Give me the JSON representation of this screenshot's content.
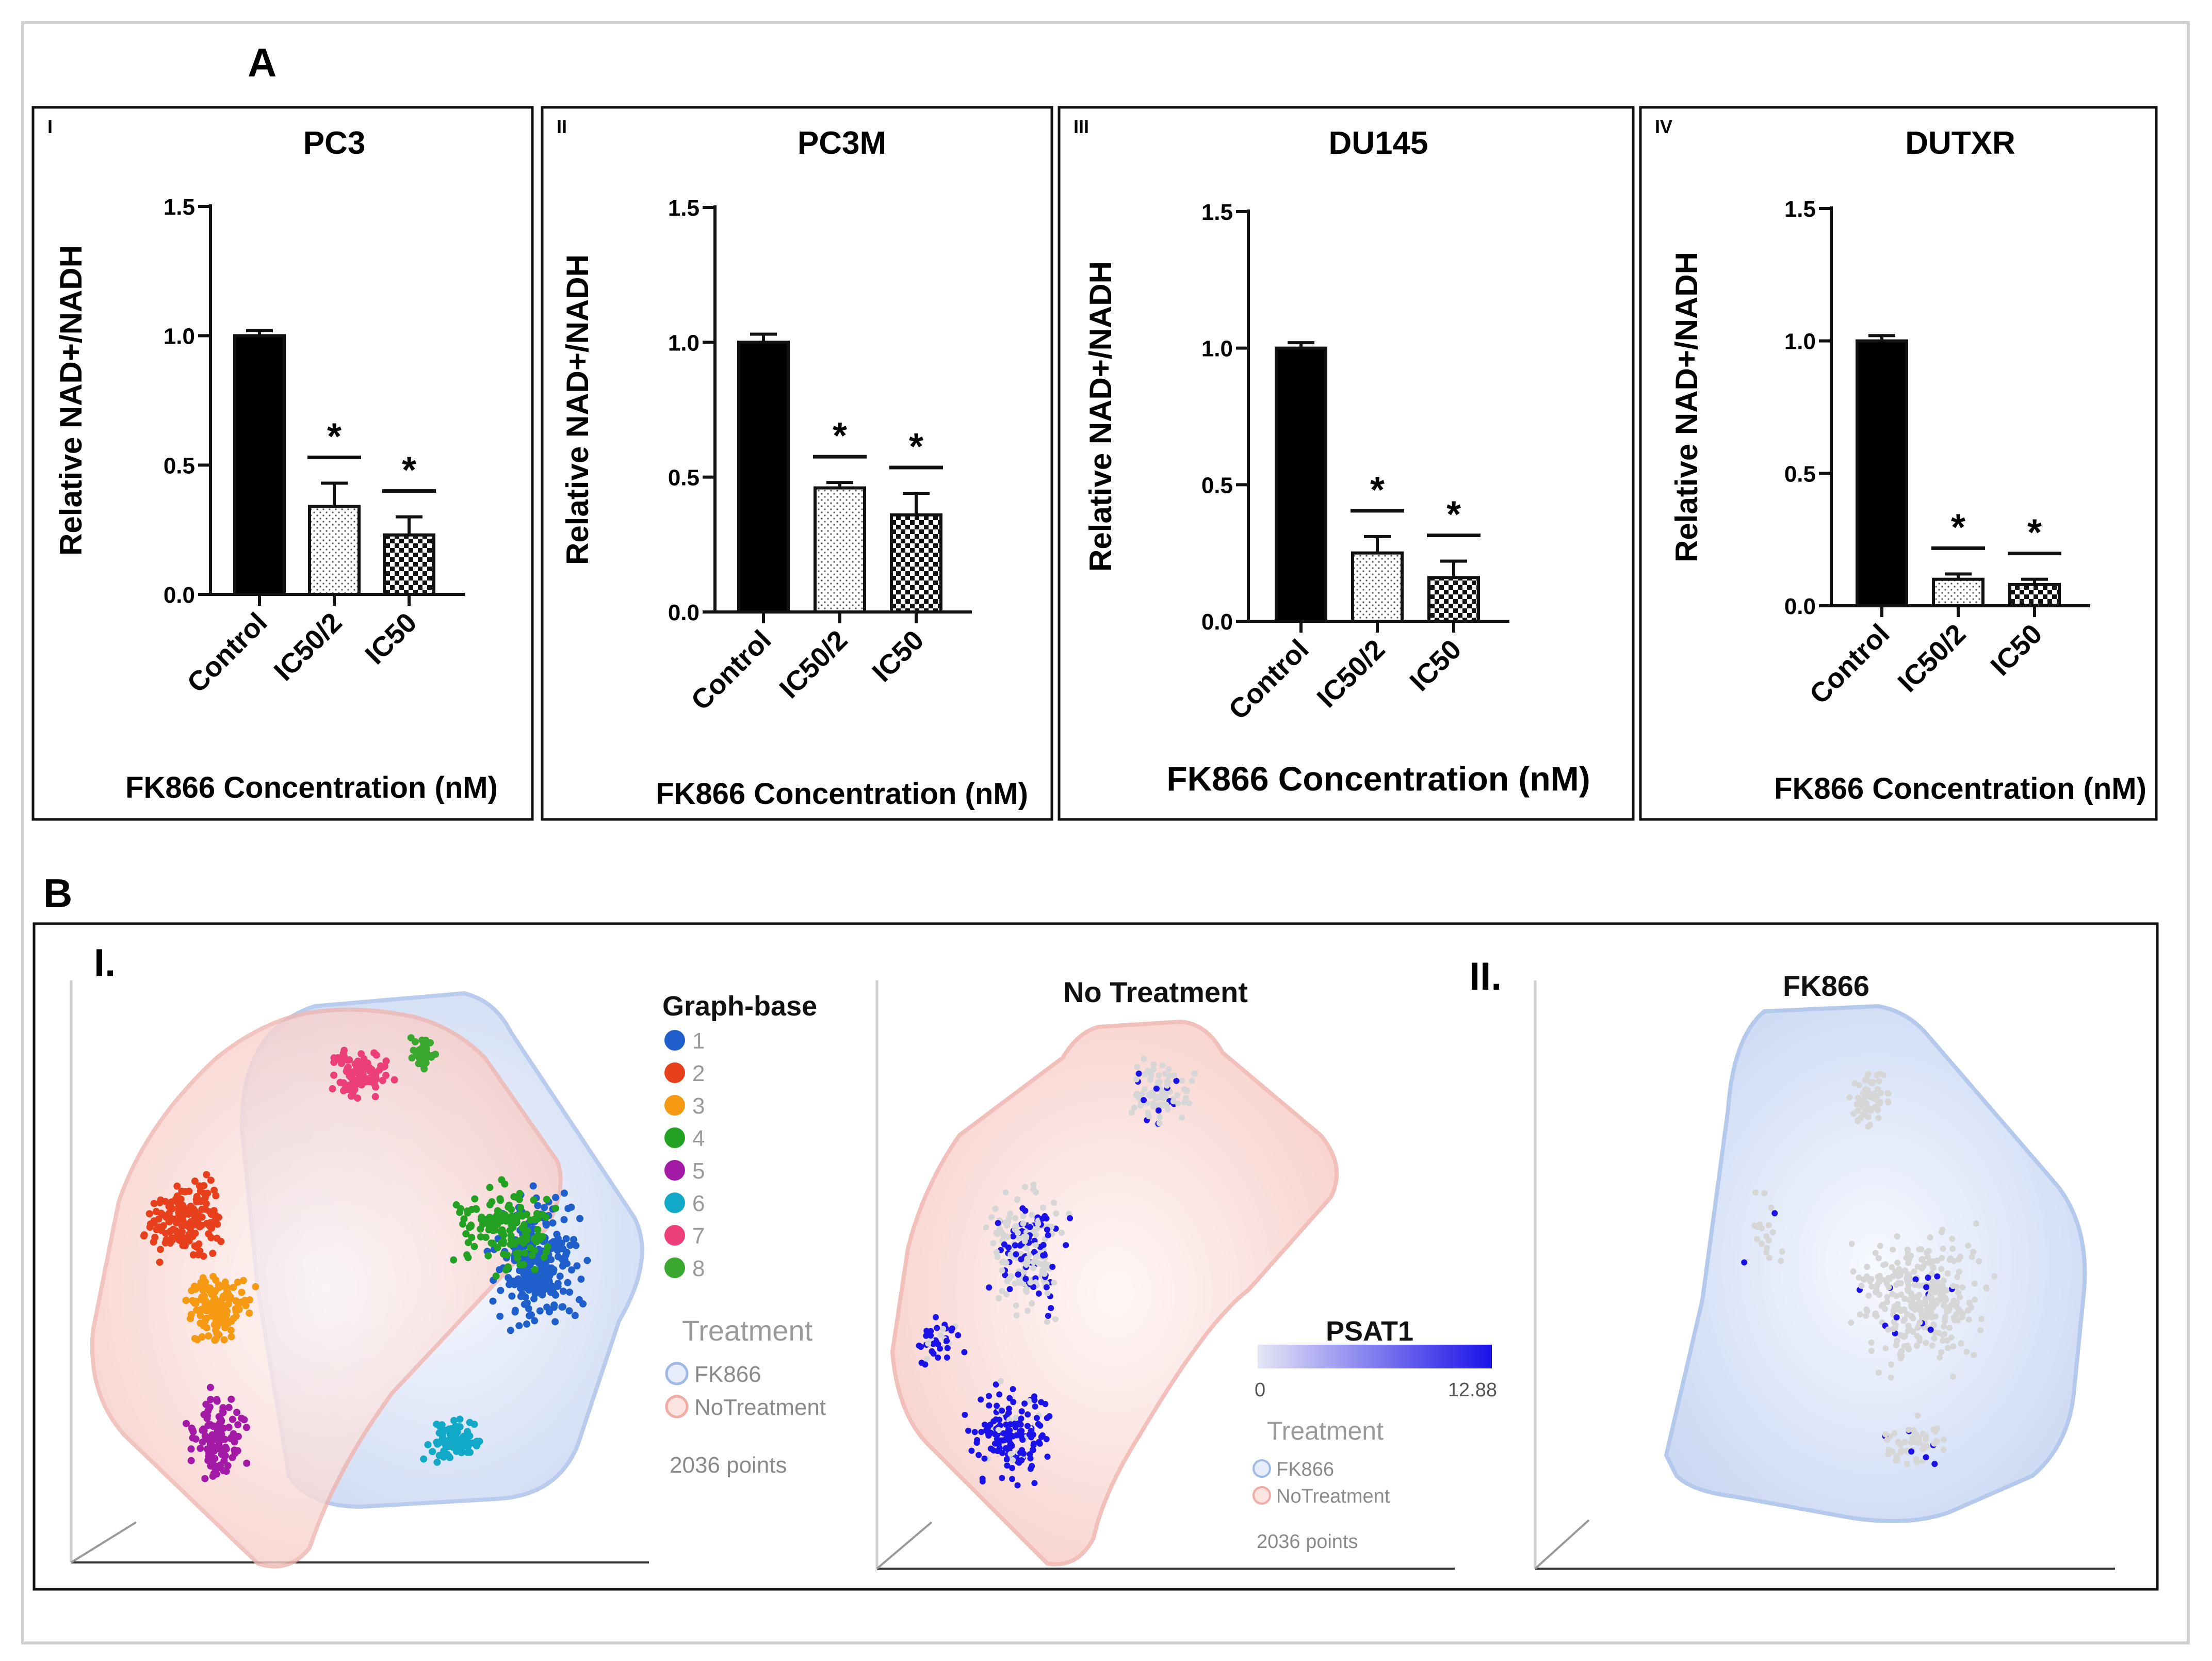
{
  "panel_a": {
    "label": "A",
    "ylabel": "Relative NAD+/NADH",
    "xlabel": "FK866 Concentration (nM)",
    "categories": [
      "Control",
      "IC50/2",
      "IC50"
    ],
    "yticks": [
      "0.0",
      "0.5",
      "1.0",
      "1.5"
    ],
    "significance": "*"
  },
  "panel_b": {
    "label": "B",
    "left_label": "I.",
    "right_label": "II.",
    "scatter_titles": [
      "No Treatment",
      "FK866"
    ],
    "graph_base_title": "Graph-base",
    "clusters": [
      "1",
      "2",
      "3",
      "4",
      "5",
      "6",
      "7",
      "8"
    ],
    "treatment_title": "Treatment",
    "treatments": [
      "FK866",
      "NoTreatment"
    ],
    "points_label": "2036 points",
    "gene_title": "PSAT1",
    "gene_min": "0",
    "gene_max": "12.88"
  },
  "colors": {
    "bar_control": "#000000",
    "cluster_colors": [
      "#1f5fcc",
      "#e8401c",
      "#f59a12",
      "#22a122",
      "#a21aa6",
      "#12a8c8",
      "#ec3f7a",
      "#3ba82f"
    ],
    "fk866_hull": "#8eaee8",
    "notreatment_hull": "#f2a7a0",
    "psat1_high": "#1a12e8",
    "psat1_low": "#d6d6d6"
  },
  "chart_data": [
    {
      "type": "bar",
      "roman": "I",
      "title": "PC3",
      "categories": [
        "Control",
        "IC50/2",
        "IC50"
      ],
      "values": [
        1.0,
        0.34,
        0.23
      ],
      "errors": [
        0.02,
        0.09,
        0.07
      ],
      "ylim": [
        0,
        1.5
      ],
      "ylabel": "Relative NAD+/NADH",
      "xlabel": "FK866 Concentration (nM)",
      "significant": [
        false,
        true,
        true
      ]
    },
    {
      "type": "bar",
      "roman": "II",
      "title": "PC3M",
      "categories": [
        "Control",
        "IC50/2",
        "IC50"
      ],
      "values": [
        1.0,
        0.46,
        0.36
      ],
      "errors": [
        0.03,
        0.02,
        0.08
      ],
      "ylim": [
        0,
        1.5
      ],
      "ylabel": "Relative NAD+/NADH",
      "xlabel": "FK866 Concentration (nM)",
      "significant": [
        false,
        true,
        true
      ]
    },
    {
      "type": "bar",
      "roman": "III",
      "title": "DU145",
      "categories": [
        "Control",
        "IC50/2",
        "IC50"
      ],
      "values": [
        1.0,
        0.25,
        0.16
      ],
      "errors": [
        0.02,
        0.06,
        0.06
      ],
      "ylim": [
        0,
        1.5
      ],
      "ylabel": "Relative NAD+/NADH",
      "xlabel": "FK866 Concentration (nM)",
      "significant": [
        false,
        true,
        true
      ]
    },
    {
      "type": "bar",
      "roman": "IV",
      "title": "DUTXR",
      "categories": [
        "Control",
        "IC50/2",
        "IC50"
      ],
      "values": [
        1.0,
        0.1,
        0.08
      ],
      "errors": [
        0.02,
        0.02,
        0.02
      ],
      "ylim": [
        0,
        1.5
      ],
      "ylabel": "Relative NAD+/NADH",
      "xlabel": "FK866 Concentration (nM)",
      "significant": [
        false,
        true,
        true
      ]
    }
  ]
}
